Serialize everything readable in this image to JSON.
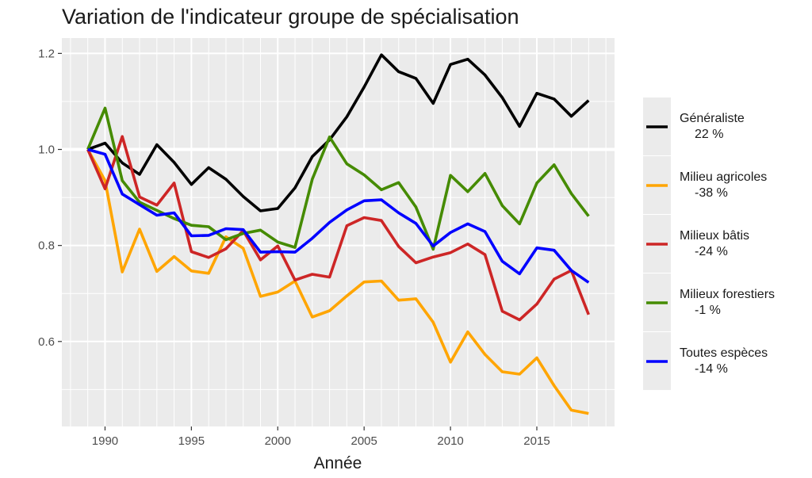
{
  "chart_data": {
    "type": "line",
    "title": "Variation de l'indicateur groupe de spécialisation",
    "xlabel": "Année",
    "ylabel": "",
    "xlim": [
      1987.5,
      2019.5
    ],
    "ylim": [
      0.423,
      1.232
    ],
    "xticks": [
      1990,
      1995,
      2000,
      2005,
      2010,
      2015
    ],
    "yticks": [
      0.6,
      0.8,
      1.0,
      1.2
    ],
    "ytick_labels": [
      "0.6",
      "0.8",
      "1.0",
      "1.2"
    ],
    "grid": true,
    "legend_position": "right",
    "reference_line": 1.0,
    "x": [
      1989,
      1990,
      1991,
      1992,
      1993,
      1994,
      1995,
      1996,
      1997,
      1998,
      1999,
      2000,
      2001,
      2002,
      2003,
      2004,
      2005,
      2006,
      2007,
      2008,
      2009,
      2010,
      2011,
      2012,
      2013,
      2014,
      2015,
      2016,
      2017,
      2018
    ],
    "series": [
      {
        "name": "Généraliste",
        "pct": "22 %",
        "color": "#000000",
        "values": [
          1.0,
          1.013,
          0.972,
          0.948,
          1.01,
          0.973,
          0.927,
          0.962,
          0.938,
          0.902,
          0.872,
          0.877,
          0.92,
          0.985,
          1.02,
          1.068,
          1.13,
          1.197,
          1.162,
          1.148,
          1.096,
          1.177,
          1.188,
          1.155,
          1.108,
          1.048,
          1.117,
          1.105,
          1.069,
          1.102
        ]
      },
      {
        "name": "Milieu agricoles",
        "pct": "-38 %",
        "color": "#ffa500",
        "values": [
          1.0,
          0.935,
          0.745,
          0.834,
          0.746,
          0.777,
          0.747,
          0.742,
          0.818,
          0.794,
          0.694,
          0.703,
          0.726,
          0.651,
          0.664,
          0.695,
          0.724,
          0.726,
          0.686,
          0.689,
          0.64,
          0.557,
          0.62,
          0.573,
          0.537,
          0.532,
          0.566,
          0.508,
          0.457,
          0.45
        ]
      },
      {
        "name": "Milieux bâtis",
        "pct": "-24 %",
        "color": "#cd2626",
        "values": [
          1.0,
          0.918,
          1.027,
          0.901,
          0.884,
          0.93,
          0.787,
          0.775,
          0.793,
          0.831,
          0.77,
          0.799,
          0.728,
          0.74,
          0.734,
          0.841,
          0.858,
          0.852,
          0.798,
          0.764,
          0.776,
          0.785,
          0.803,
          0.781,
          0.663,
          0.645,
          0.678,
          0.73,
          0.748,
          0.656
        ]
      },
      {
        "name": "Milieux forestiers",
        "pct": "-1 %",
        "color": "#458b00",
        "values": [
          1.0,
          1.086,
          0.935,
          0.89,
          0.873,
          0.856,
          0.842,
          0.839,
          0.812,
          0.825,
          0.832,
          0.807,
          0.796,
          0.938,
          1.026,
          0.97,
          0.947,
          0.916,
          0.931,
          0.88,
          0.792,
          0.946,
          0.912,
          0.95,
          0.883,
          0.845,
          0.93,
          0.968,
          0.908,
          0.861
        ]
      },
      {
        "name": "Toutes espèces",
        "pct": "-14 %",
        "color": "#0000ff",
        "values": [
          1.0,
          0.99,
          0.907,
          0.885,
          0.863,
          0.868,
          0.82,
          0.821,
          0.835,
          0.833,
          0.786,
          0.787,
          0.786,
          0.815,
          0.848,
          0.874,
          0.893,
          0.895,
          0.868,
          0.846,
          0.799,
          0.827,
          0.845,
          0.829,
          0.767,
          0.741,
          0.795,
          0.79,
          0.748,
          0.723
        ]
      }
    ]
  }
}
